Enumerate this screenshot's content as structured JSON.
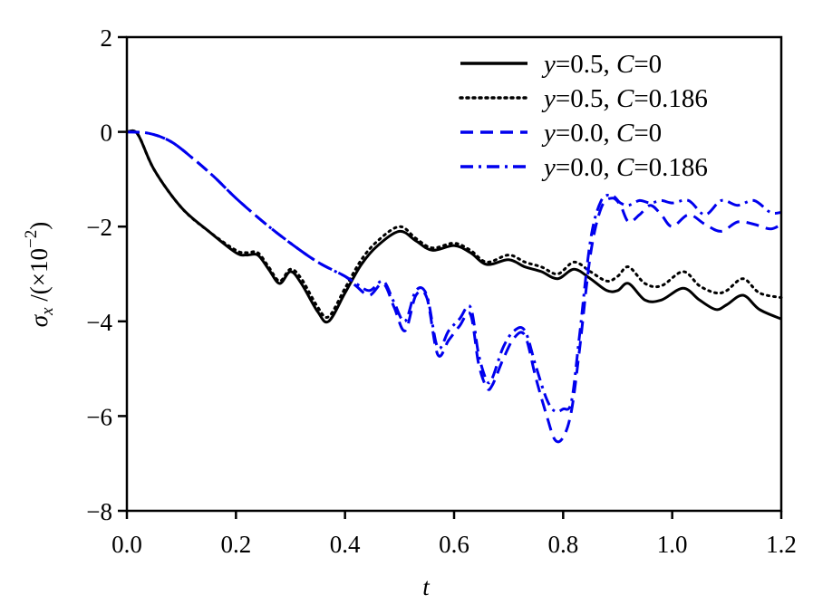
{
  "chart_data": {
    "type": "line",
    "title": "",
    "xlabel": "t",
    "ylabel": "σx /(×10^-2)",
    "ylabel_parts": {
      "sym": "σ",
      "sub": "x",
      "rest": " /(×10",
      "sup": "−2",
      "close": ")"
    },
    "xlim": [
      0.0,
      1.2
    ],
    "ylim": [
      -8,
      2
    ],
    "xticks": [
      "0.0",
      "0.2",
      "0.4",
      "0.6",
      "0.8",
      "1.0",
      "1.2"
    ],
    "yticks": [
      "2",
      "0",
      "−2",
      "−4",
      "−6",
      "−8"
    ],
    "grid": false,
    "legend_position": "upper right",
    "series": [
      {
        "name": "y=0.5, C=0",
        "label_parts": [
          "y",
          "=0.5, ",
          "C",
          "=0"
        ],
        "color": "#000000",
        "style": "solid",
        "x": [
          0,
          0.02,
          0.05,
          0.1,
          0.15,
          0.2,
          0.22,
          0.24,
          0.26,
          0.28,
          0.3,
          0.32,
          0.35,
          0.37,
          0.4,
          0.43,
          0.46,
          0.5,
          0.53,
          0.56,
          0.6,
          0.63,
          0.66,
          0.7,
          0.73,
          0.76,
          0.79,
          0.82,
          0.85,
          0.88,
          0.9,
          0.92,
          0.95,
          0.98,
          1.02,
          1.05,
          1.08,
          1.1,
          1.13,
          1.16,
          1.2
        ],
        "y": [
          0,
          -0.05,
          -0.8,
          -1.6,
          -2.1,
          -2.55,
          -2.6,
          -2.6,
          -2.9,
          -3.2,
          -2.95,
          -3.2,
          -3.8,
          -4.0,
          -3.4,
          -2.8,
          -2.4,
          -2.1,
          -2.3,
          -2.5,
          -2.4,
          -2.55,
          -2.8,
          -2.7,
          -2.85,
          -2.95,
          -3.1,
          -2.9,
          -3.1,
          -3.35,
          -3.35,
          -3.2,
          -3.55,
          -3.55,
          -3.3,
          -3.55,
          -3.75,
          -3.65,
          -3.45,
          -3.75,
          -3.95
        ]
      },
      {
        "name": "y=0.5, C=0.186",
        "label_parts": [
          "y",
          "=0.5, ",
          "C",
          "=0.186"
        ],
        "color": "#000000",
        "style": "dotted",
        "x": [
          0,
          0.02,
          0.05,
          0.1,
          0.15,
          0.2,
          0.22,
          0.24,
          0.26,
          0.28,
          0.3,
          0.32,
          0.35,
          0.37,
          0.4,
          0.43,
          0.46,
          0.5,
          0.53,
          0.56,
          0.6,
          0.63,
          0.66,
          0.7,
          0.73,
          0.76,
          0.79,
          0.82,
          0.85,
          0.88,
          0.9,
          0.92,
          0.95,
          0.98,
          1.02,
          1.05,
          1.08,
          1.1,
          1.13,
          1.16,
          1.2
        ],
        "y": [
          0,
          -0.05,
          -0.8,
          -1.6,
          -2.1,
          -2.5,
          -2.55,
          -2.55,
          -2.85,
          -3.15,
          -2.9,
          -3.1,
          -3.7,
          -3.9,
          -3.3,
          -2.7,
          -2.3,
          -2.0,
          -2.25,
          -2.45,
          -2.35,
          -2.5,
          -2.75,
          -2.6,
          -2.75,
          -2.85,
          -3.0,
          -2.75,
          -2.95,
          -3.15,
          -3.05,
          -2.85,
          -3.2,
          -3.25,
          -2.95,
          -3.25,
          -3.4,
          -3.35,
          -3.1,
          -3.4,
          -3.5
        ]
      },
      {
        "name": "y=0.0, C=0",
        "label_parts": [
          "y",
          "=0.0, ",
          "C",
          "=0"
        ],
        "color": "#0000ee",
        "style": "dashed",
        "x": [
          0,
          0.04,
          0.08,
          0.12,
          0.16,
          0.2,
          0.25,
          0.3,
          0.35,
          0.4,
          0.42,
          0.445,
          0.47,
          0.49,
          0.51,
          0.53,
          0.55,
          0.57,
          0.59,
          0.61,
          0.63,
          0.645,
          0.66,
          0.67,
          0.69,
          0.71,
          0.73,
          0.75,
          0.77,
          0.785,
          0.8,
          0.815,
          0.83,
          0.85,
          0.87,
          0.89,
          0.905,
          0.92,
          0.94,
          0.96,
          0.98,
          1.0,
          1.03,
          1.06,
          1.09,
          1.12,
          1.15,
          1.18,
          1.2
        ],
        "y": [
          0,
          -0.03,
          -0.2,
          -0.55,
          -0.95,
          -1.4,
          -1.9,
          -2.35,
          -2.75,
          -3.05,
          -3.25,
          -3.45,
          -3.2,
          -3.7,
          -4.2,
          -3.45,
          -3.5,
          -4.7,
          -4.4,
          -4.1,
          -3.85,
          -4.9,
          -5.4,
          -5.35,
          -4.8,
          -4.35,
          -4.3,
          -5.2,
          -6.0,
          -6.5,
          -6.45,
          -5.9,
          -4.6,
          -2.6,
          -1.6,
          -1.4,
          -1.55,
          -1.9,
          -1.75,
          -1.55,
          -1.75,
          -2.0,
          -1.75,
          -1.95,
          -2.1,
          -1.9,
          -1.95,
          -2.05,
          -1.95
        ]
      },
      {
        "name": "y=0.0, C=0.186",
        "label_parts": [
          "y",
          "=0.0, ",
          "C",
          "=0.186"
        ],
        "color": "#0000ee",
        "style": "dashdot",
        "x": [
          0,
          0.04,
          0.08,
          0.12,
          0.16,
          0.2,
          0.25,
          0.3,
          0.35,
          0.4,
          0.42,
          0.445,
          0.47,
          0.49,
          0.51,
          0.53,
          0.55,
          0.57,
          0.59,
          0.61,
          0.63,
          0.645,
          0.66,
          0.67,
          0.69,
          0.71,
          0.73,
          0.75,
          0.77,
          0.785,
          0.8,
          0.815,
          0.83,
          0.85,
          0.87,
          0.89,
          0.905,
          0.92,
          0.94,
          0.96,
          0.98,
          1.0,
          1.03,
          1.06,
          1.09,
          1.12,
          1.15,
          1.18,
          1.2
        ],
        "y": [
          0,
          -0.03,
          -0.2,
          -0.55,
          -0.95,
          -1.4,
          -1.9,
          -2.35,
          -2.75,
          -3.05,
          -3.2,
          -3.35,
          -3.15,
          -3.6,
          -4.0,
          -3.35,
          -3.45,
          -4.55,
          -4.2,
          -3.95,
          -3.7,
          -4.7,
          -5.25,
          -5.2,
          -4.55,
          -4.2,
          -4.2,
          -4.95,
          -5.65,
          -5.9,
          -5.85,
          -5.7,
          -4.3,
          -2.3,
          -1.45,
          -1.35,
          -1.5,
          -1.55,
          -1.45,
          -1.5,
          -1.45,
          -1.5,
          -1.45,
          -1.75,
          -1.45,
          -1.55,
          -1.45,
          -1.7,
          -1.7
        ]
      }
    ]
  }
}
